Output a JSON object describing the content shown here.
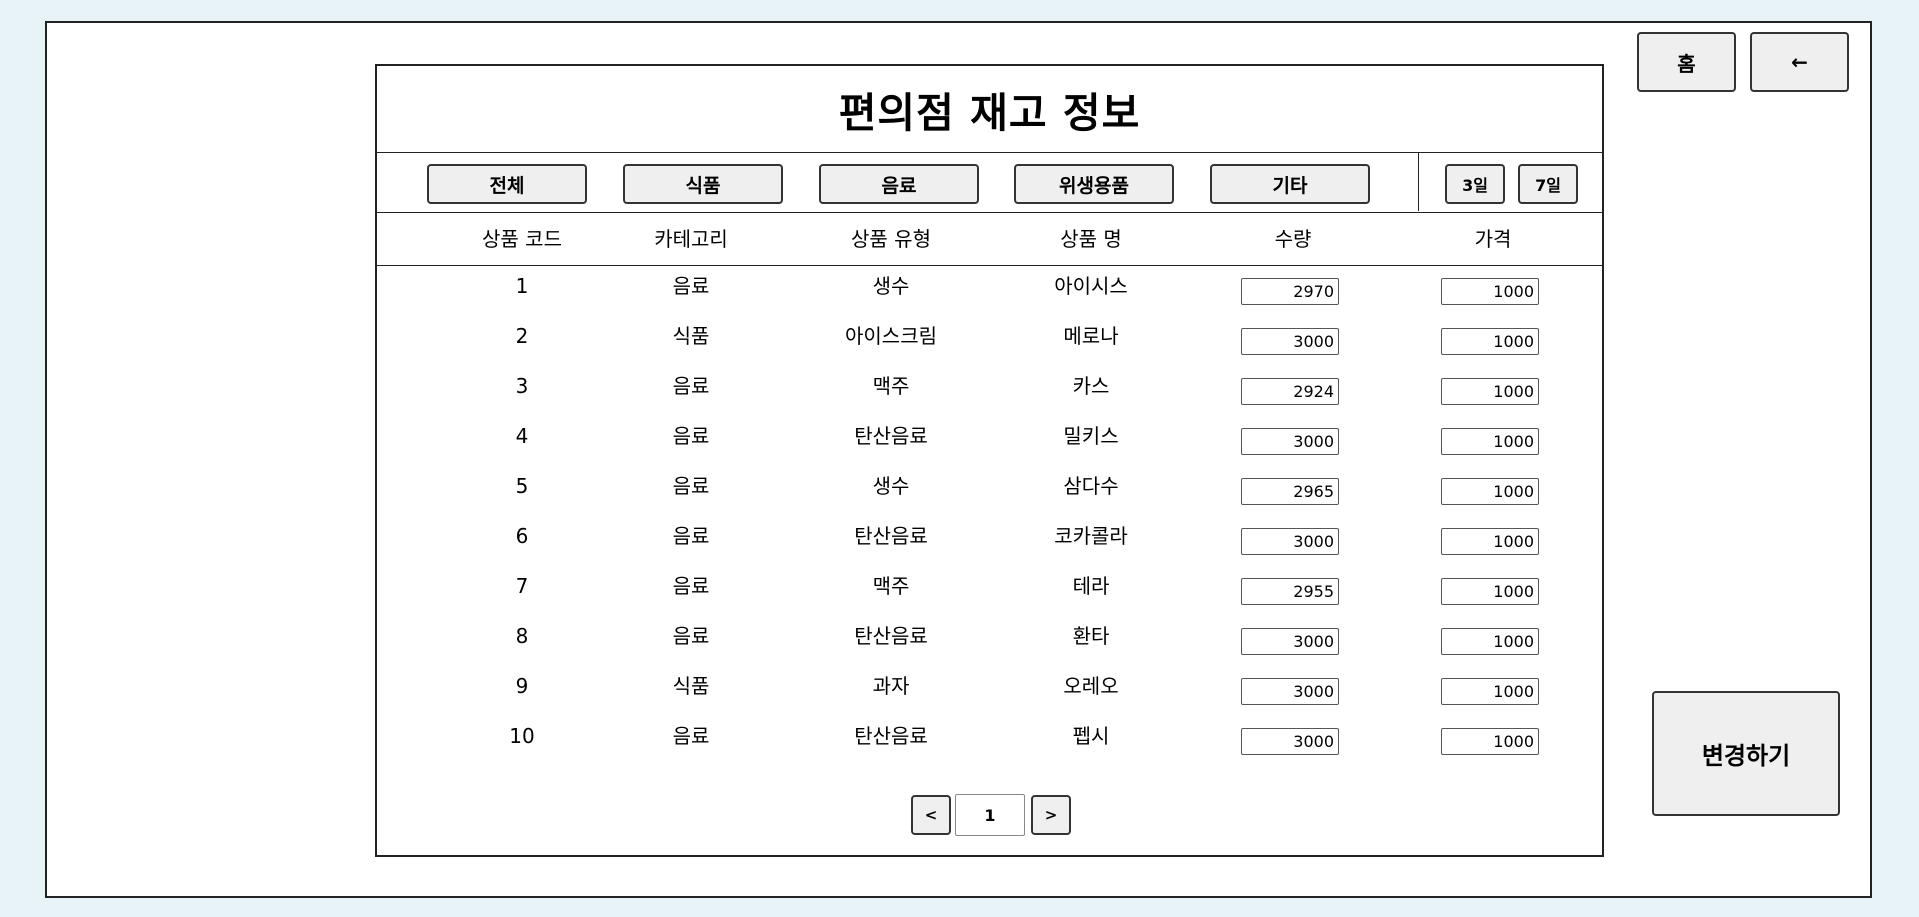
{
  "title": "편의점 재고 정보",
  "nav": {
    "home_label": "홈",
    "back_label": "←"
  },
  "filters": {
    "categories": [
      "전체",
      "식품",
      "음료",
      "위생용품",
      "기타"
    ],
    "periods": [
      "3일",
      "7일"
    ]
  },
  "table": {
    "headers": [
      "상품 코드",
      "카테고리",
      "상품 유형",
      "상품 명",
      "수량",
      "가격"
    ],
    "rows": [
      {
        "code": "1",
        "category": "음료",
        "type": "생수",
        "name": "아이시스",
        "qty": "2970",
        "price": "1000"
      },
      {
        "code": "2",
        "category": "식품",
        "type": "아이스크림",
        "name": "메로나",
        "qty": "3000",
        "price": "1000"
      },
      {
        "code": "3",
        "category": "음료",
        "type": "맥주",
        "name": "카스",
        "qty": "2924",
        "price": "1000"
      },
      {
        "code": "4",
        "category": "음료",
        "type": "탄산음료",
        "name": "밀키스",
        "qty": "3000",
        "price": "1000"
      },
      {
        "code": "5",
        "category": "음료",
        "type": "생수",
        "name": "삼다수",
        "qty": "2965",
        "price": "1000"
      },
      {
        "code": "6",
        "category": "음료",
        "type": "탄산음료",
        "name": "코카콜라",
        "qty": "3000",
        "price": "1000"
      },
      {
        "code": "7",
        "category": "음료",
        "type": "맥주",
        "name": "테라",
        "qty": "2955",
        "price": "1000"
      },
      {
        "code": "8",
        "category": "음료",
        "type": "탄산음료",
        "name": "환타",
        "qty": "3000",
        "price": "1000"
      },
      {
        "code": "9",
        "category": "식품",
        "type": "과자",
        "name": "오레오",
        "qty": "3000",
        "price": "1000"
      },
      {
        "code": "10",
        "category": "음료",
        "type": "탄산음료",
        "name": "펩시",
        "qty": "3000",
        "price": "1000"
      }
    ]
  },
  "pagination": {
    "prev_label": "<",
    "page": "1",
    "next_label": ">"
  },
  "apply_label": "변경하기"
}
